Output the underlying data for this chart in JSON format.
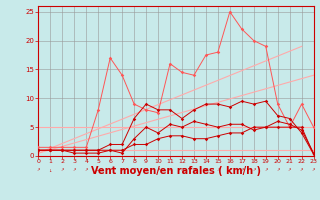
{
  "bg_color": "#c8eaea",
  "grid_color": "#999999",
  "xlabel": "Vent moyen/en rafales ( km/h )",
  "xlabel_color": "#cc0000",
  "xlabel_fontsize": 7,
  "ytick_labels": [
    "0",
    "5",
    "10",
    "15",
    "20",
    "25"
  ],
  "ytick_vals": [
    0,
    5,
    10,
    15,
    20,
    25
  ],
  "xtick_vals": [
    0,
    1,
    2,
    3,
    4,
    5,
    6,
    7,
    8,
    9,
    10,
    11,
    12,
    13,
    14,
    15,
    16,
    17,
    18,
    19,
    20,
    21,
    22,
    23
  ],
  "xlim": [
    0,
    23
  ],
  "ylim": [
    0,
    26
  ],
  "x": [
    0,
    1,
    2,
    3,
    4,
    5,
    6,
    7,
    8,
    9,
    10,
    11,
    12,
    13,
    14,
    15,
    16,
    17,
    18,
    19,
    20,
    21,
    22,
    23
  ],
  "trend1_x": [
    0,
    23
  ],
  "trend1_y": [
    0.5,
    14.0
  ],
  "trend2_x": [
    0,
    22
  ],
  "trend2_y": [
    0.5,
    19.0
  ],
  "hline1_y": 1.0,
  "hline2_y": 5.0,
  "line5_y": [
    1,
    1,
    1,
    0.5,
    0.5,
    0.5,
    1,
    1,
    2,
    2,
    3,
    3.5,
    3.5,
    3,
    3,
    3.5,
    4,
    4,
    5,
    5,
    5,
    5,
    5,
    0.3
  ],
  "line6_y": [
    1,
    1,
    1,
    1,
    1,
    1,
    1,
    0.5,
    3,
    5,
    4,
    5.5,
    5,
    6,
    5.5,
    5,
    5.5,
    5.5,
    4.5,
    5,
    6,
    5.5,
    4.5,
    0.5
  ],
  "line7_y": [
    1,
    1,
    1,
    1,
    1,
    1,
    2,
    2,
    6.5,
    9,
    8,
    8,
    6.5,
    8,
    9,
    9,
    8.5,
    9.5,
    9,
    9.5,
    7,
    6.5,
    4,
    0.3
  ],
  "line8_y": [
    1.5,
    1.5,
    1.5,
    1.5,
    1.5,
    8,
    17,
    14,
    9,
    8,
    7.5,
    16,
    14.5,
    14,
    17.5,
    18,
    25,
    22,
    20,
    19,
    9,
    5,
    9,
    5
  ],
  "color_trend": "#ffaaaa",
  "color_hline": "#ffaaaa",
  "color_dark_red": "#cc0000",
  "color_mid_red": "#ff5555",
  "marker": "D",
  "markersize": 1.8,
  "arrow_chars": [
    "↗",
    "↓",
    "↗",
    "↗",
    "↗",
    "→",
    "↗",
    "↗",
    "↗",
    "↗",
    "↗",
    "↗",
    "↗",
    "↗",
    "↗",
    "↗",
    "↗",
    "↗",
    "↗",
    "↗",
    "↗",
    "↗",
    "↗",
    "↗"
  ]
}
